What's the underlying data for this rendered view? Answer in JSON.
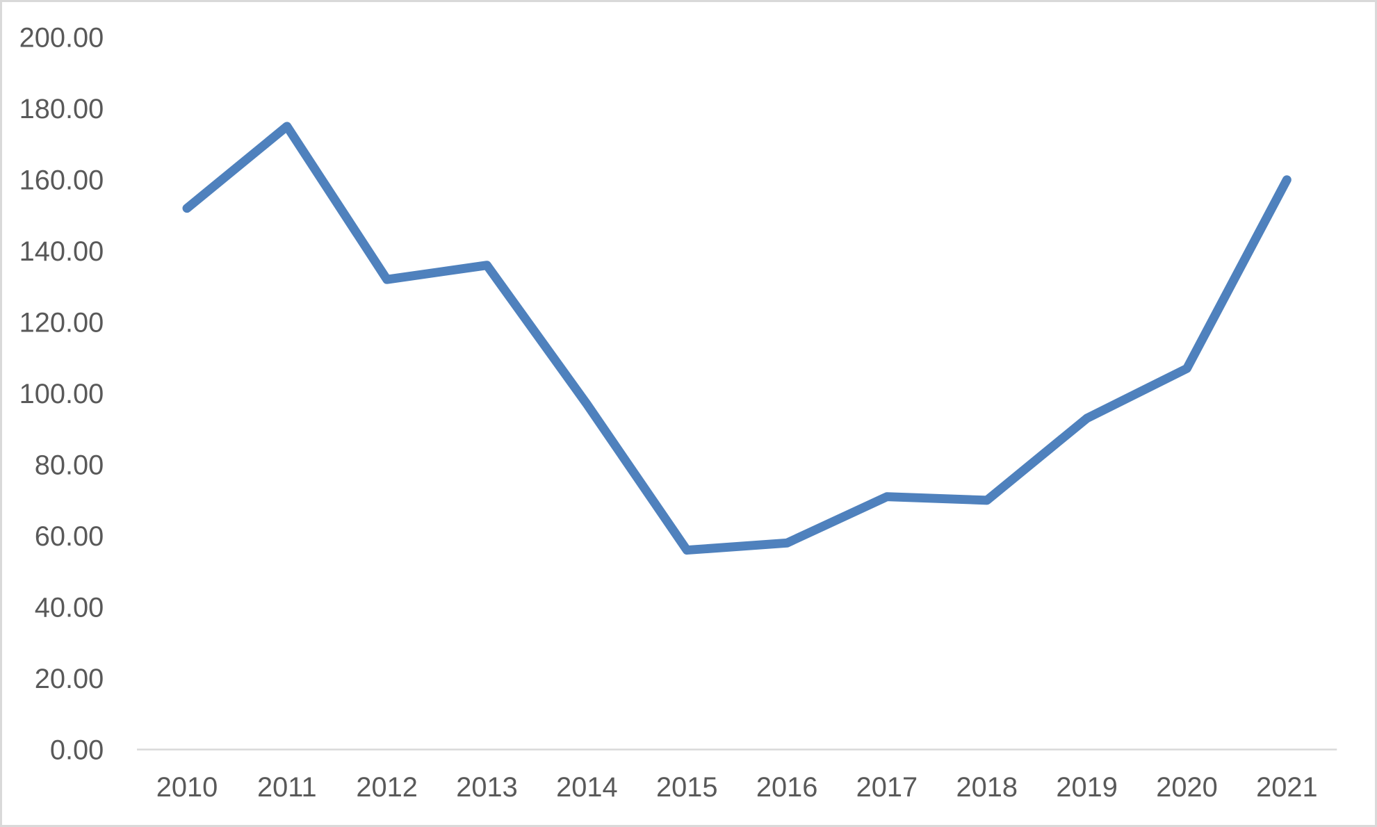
{
  "chart_data": {
    "type": "line",
    "title": "",
    "xlabel": "",
    "ylabel": "",
    "categories": [
      "2010",
      "2011",
      "2012",
      "2013",
      "2014",
      "2015",
      "2016",
      "2017",
      "2018",
      "2019",
      "2020",
      "2021"
    ],
    "series": [
      {
        "name": "series-1",
        "values": [
          152,
          175,
          132,
          136,
          97,
          56,
          58,
          71,
          70,
          93,
          107,
          160
        ]
      }
    ],
    "ylim": [
      0,
      200
    ],
    "y_tick_step": 20,
    "y_tick_labels": [
      "0.00",
      "20.00",
      "40.00",
      "60.00",
      "80.00",
      "100.00",
      "120.00",
      "140.00",
      "160.00",
      "180.00",
      "200.00"
    ],
    "grid": false,
    "legend_position": "none",
    "colors": {
      "line": "#4F81BD",
      "axis_line": "#D9D9D9",
      "tick_label": "#595959",
      "background": "#FFFFFF",
      "frame_border": "#D9D9D9"
    }
  }
}
